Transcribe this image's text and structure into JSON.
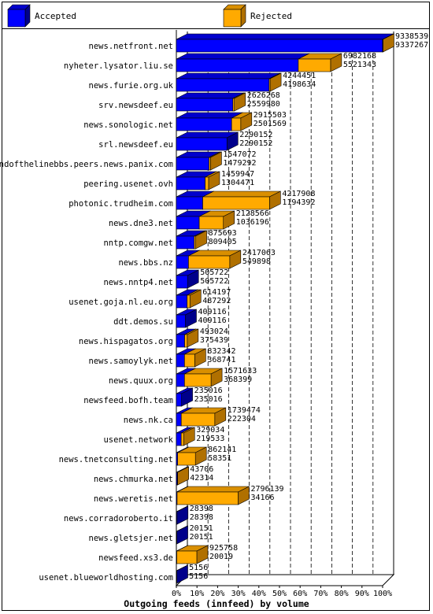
{
  "colors": {
    "accepted_front": "#0000FF",
    "accepted_top": "#0000CC",
    "accepted_side": "#00008B",
    "rejected_front": "#FFAA00",
    "rejected_top": "#D98F00",
    "rejected_side": "#B07000",
    "grid": "#000000",
    "axis": "#000000"
  },
  "chart_data": {
    "type": "bar",
    "orientation": "horizontal",
    "style": "3d-overlapping",
    "title": "Outgoing feeds (innfeed) by volume",
    "xlabel": "",
    "ylabel": "",
    "xlim": [
      0,
      100
    ],
    "x_unit": "%",
    "x_ticks": [
      "0%",
      "10%",
      "20%",
      "30%",
      "40%",
      "50%",
      "60%",
      "70%",
      "80%",
      "90%",
      "100%"
    ],
    "grid": "vertical dashed",
    "legend_position": "top",
    "max_value": 9338539,
    "series": [
      {
        "name": "Accepted",
        "key": "accepted"
      },
      {
        "name": "Rejected",
        "key": "rejected"
      }
    ],
    "categories": [
      "news.netfront.net",
      "nyheter.lysator.liu.se",
      "news.furie.org.uk",
      "srv.newsdeef.eu",
      "news.sonologic.net",
      "srl.newsdeef.eu",
      "endofthelinebbs.peers.news.panix.com",
      "peering.usenet.ovh",
      "photonic.trudheim.com",
      "news.dne3.net",
      "nntp.comgw.net",
      "news.bbs.nz",
      "news.nntp4.net",
      "usenet.goja.nl.eu.org",
      "ddt.demos.su",
      "news.hispagatos.org",
      "news.samoylyk.net",
      "news.quux.org",
      "newsfeed.bofh.team",
      "news.nk.ca",
      "usenet.network",
      "news.tnetconsulting.net",
      "news.chmurka.net",
      "news.weretis.net",
      "news.corradoroberto.it",
      "news.gletsjer.net",
      "newsfeed.xs3.de",
      "usenet.blueworldhosting.com"
    ],
    "offered_labels": [
      "9338539",
      "6982168",
      "4244451",
      "2626268",
      "2915503",
      "2290152",
      "1547072",
      "1459947",
      "4217908",
      "2128566",
      "875693",
      "2417063",
      "505722",
      "614197",
      "409116",
      "493024",
      "832342",
      "1571633",
      "235016",
      "1739474",
      "329034",
      "862141",
      "43706",
      "2796139",
      "28398",
      "20151",
      "925758",
      "5156"
    ],
    "accepted_labels": [
      "9337267",
      "5521343",
      "4198634",
      "2559980",
      "2501569",
      "2290152",
      "1479292",
      "1304471",
      "1194392",
      "1036196",
      "809405",
      "549898",
      "505722",
      "487292",
      "409116",
      "375439",
      "368741",
      "368399",
      "235016",
      "222304",
      "219533",
      "58351",
      "42314",
      "34166",
      "28398",
      "20151",
      "20019",
      "5156"
    ],
    "offered": [
      9338539,
      6982168,
      4244451,
      2626268,
      2915503,
      2290152,
      1547072,
      1459947,
      4217908,
      2128566,
      875693,
      2417063,
      505722,
      614197,
      409116,
      493024,
      832342,
      1571633,
      235016,
      1739474,
      329034,
      862141,
      43706,
      2796139,
      28398,
      20151,
      925758,
      5156
    ],
    "accepted": [
      9337267,
      5521343,
      4198634,
      2559980,
      2501569,
      2290152,
      1479292,
      1304471,
      1194392,
      1036196,
      809405,
      549898,
      505722,
      487292,
      409116,
      375439,
      368741,
      368399,
      235016,
      222304,
      219533,
      58351,
      42314,
      34166,
      28398,
      20151,
      20019,
      5156
    ]
  }
}
